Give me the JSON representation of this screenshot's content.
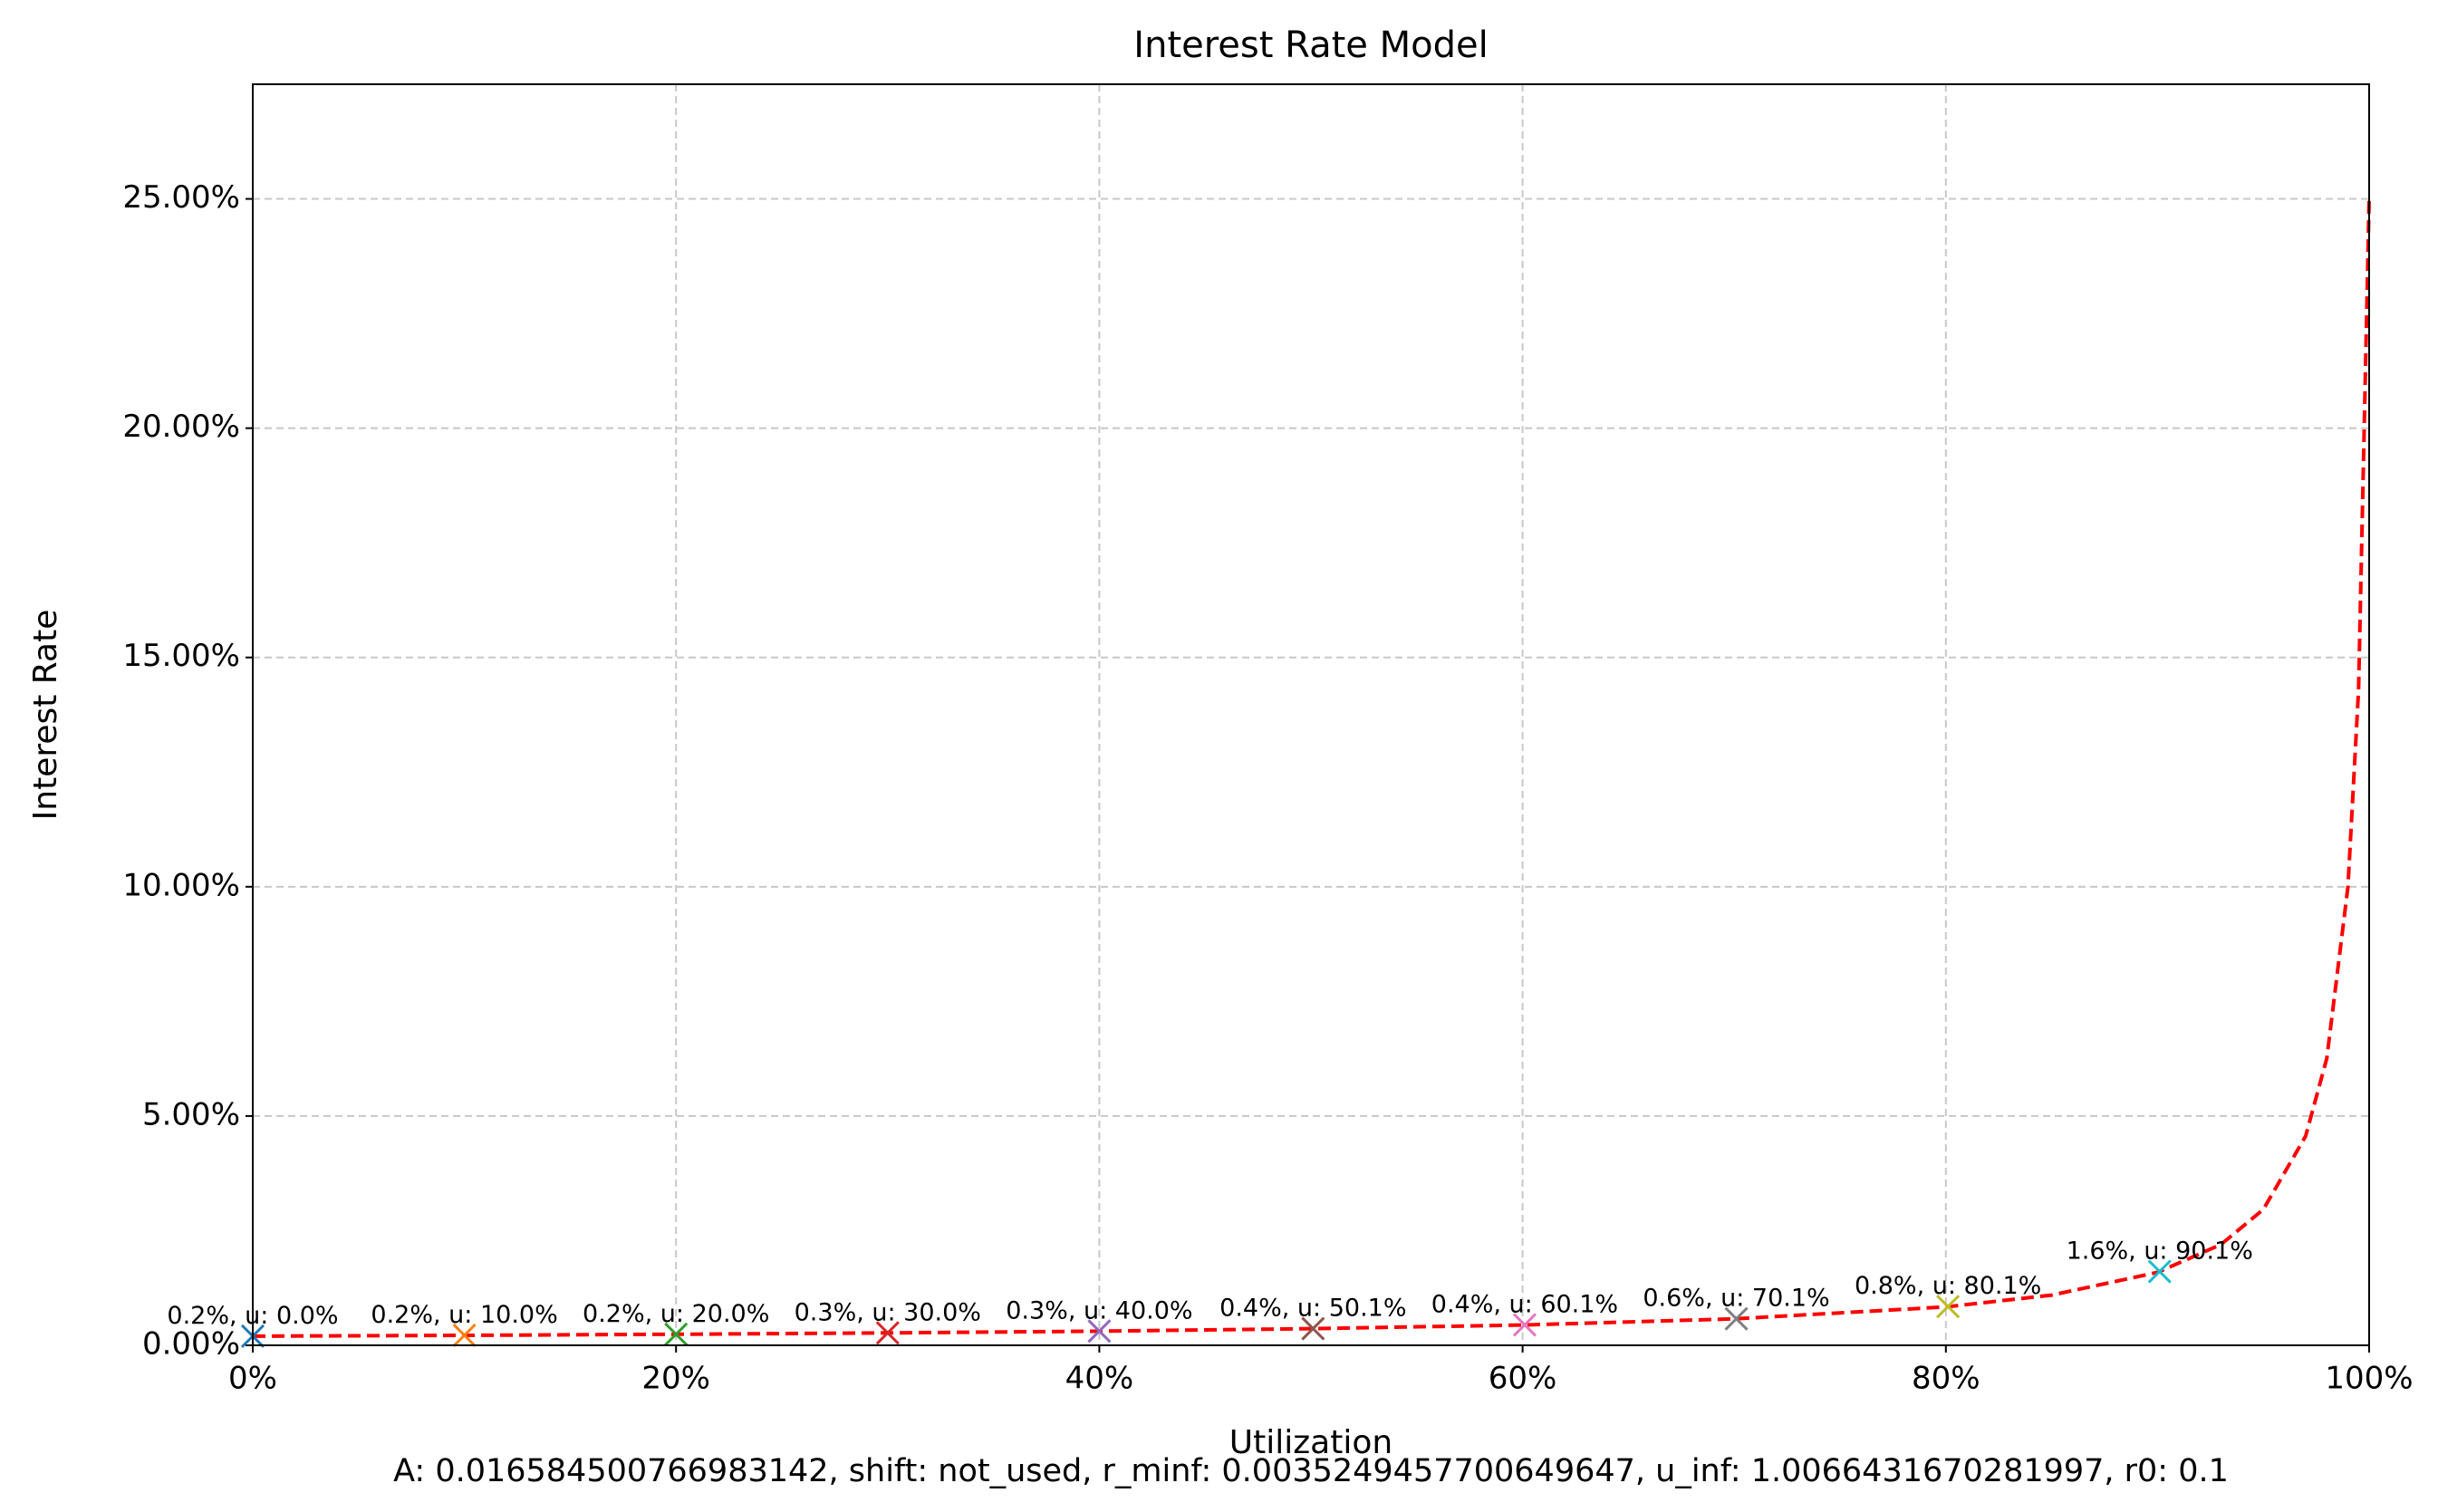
{
  "chart_data": {
    "type": "line",
    "title": "Interest Rate Model",
    "xlabel": "Utilization",
    "ylabel": "Interest Rate",
    "footnote": "A: 0.016584500766983142, shift: not_used, r_minf: 0.0035249457700649647, u_inf: 1.0066431670281997, r0: 0.1",
    "x": [
      0,
      10,
      20,
      30,
      40,
      50,
      60,
      70,
      80,
      85,
      90,
      93,
      95,
      97,
      98,
      99,
      99.5,
      100
    ],
    "series": [
      {
        "color": "#ff0000",
        "values": [
          0.2,
          0.218,
          0.241,
          0.27,
          0.309,
          0.363,
          0.443,
          0.576,
          0.838,
          1.094,
          1.59,
          2.199,
          2.963,
          4.561,
          6.26,
          10.0,
          14.28,
          25.0
        ]
      }
    ],
    "points": [
      {
        "x": 0.0,
        "value": 0.2,
        "label": "0.2%, u: 0.0%",
        "color": "#1f77b4"
      },
      {
        "x": 10.0,
        "value": 0.218,
        "label": "0.2%, u: 10.0%",
        "color": "#ff7f0e"
      },
      {
        "x": 20.0,
        "value": 0.241,
        "label": "0.2%, u: 20.0%",
        "color": "#2ca02c"
      },
      {
        "x": 30.0,
        "value": 0.27,
        "label": "0.3%, u: 30.0%",
        "color": "#d62728"
      },
      {
        "x": 40.0,
        "value": 0.309,
        "label": "0.3%, u: 40.0%",
        "color": "#9467bd"
      },
      {
        "x": 50.1,
        "value": 0.364,
        "label": "0.4%, u: 50.1%",
        "color": "#8c564b"
      },
      {
        "x": 60.1,
        "value": 0.445,
        "label": "0.4%, u: 60.1%",
        "color": "#e377c2"
      },
      {
        "x": 70.1,
        "value": 0.579,
        "label": "0.6%, u: 70.1%",
        "color": "#7f7f7f"
      },
      {
        "x": 80.1,
        "value": 0.846,
        "label": "0.8%, u: 80.1%",
        "color": "#bcbd22"
      },
      {
        "x": 90.1,
        "value": 1.61,
        "label": "1.6%, u: 90.1%",
        "color": "#17becf"
      }
    ],
    "xlim": [
      0,
      100
    ],
    "ylim": [
      0,
      27.5
    ],
    "xticks": [
      {
        "value": 0,
        "label": "0%"
      },
      {
        "value": 20,
        "label": "20%"
      },
      {
        "value": 40,
        "label": "40%"
      },
      {
        "value": 60,
        "label": "60%"
      },
      {
        "value": 80,
        "label": "80%"
      },
      {
        "value": 100,
        "label": "100%"
      }
    ],
    "yticks": [
      {
        "value": 0,
        "label": "0.00%"
      },
      {
        "value": 5,
        "label": "5.00%"
      },
      {
        "value": 10,
        "label": "10.00%"
      },
      {
        "value": 15,
        "label": "15.00%"
      },
      {
        "value": 20,
        "label": "20.00%"
      },
      {
        "value": 25,
        "label": "25.00%"
      }
    ],
    "grid": true
  }
}
